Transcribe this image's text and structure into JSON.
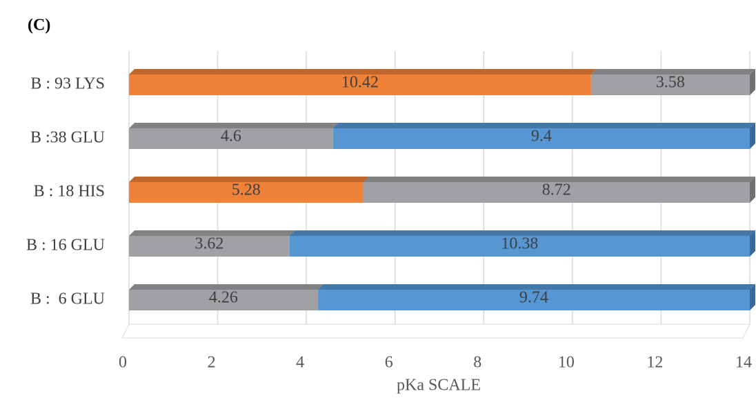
{
  "chart_data": {
    "type": "bar",
    "orientation": "horizontal",
    "stacked": true,
    "panel_label": "(C)",
    "x_label": "pKa SCALE",
    "categories": [
      "B : 93 LYS",
      "B :38 GLU",
      "B : 18 HIS",
      "B : 16 GLU",
      "B :  6 GLU"
    ],
    "series": [
      {
        "values": [
          10.42,
          4.6,
          5.28,
          3.62,
          4.26
        ],
        "colors": [
          "#f08138",
          "#9fa1a4",
          "#f08138",
          "#9fa1a4",
          "#9fa1a4"
        ]
      },
      {
        "values": [
          3.58,
          9.4,
          8.72,
          10.38,
          9.74
        ],
        "colors": [
          "#9fa1a4",
          "#5596d3",
          "#9fa1a4",
          "#5596d3",
          "#5596d3"
        ]
      }
    ],
    "xlim": [
      0,
      14
    ],
    "xticks": [
      0,
      2,
      4,
      6,
      8,
      10,
      12,
      14
    ],
    "grid": true
  }
}
